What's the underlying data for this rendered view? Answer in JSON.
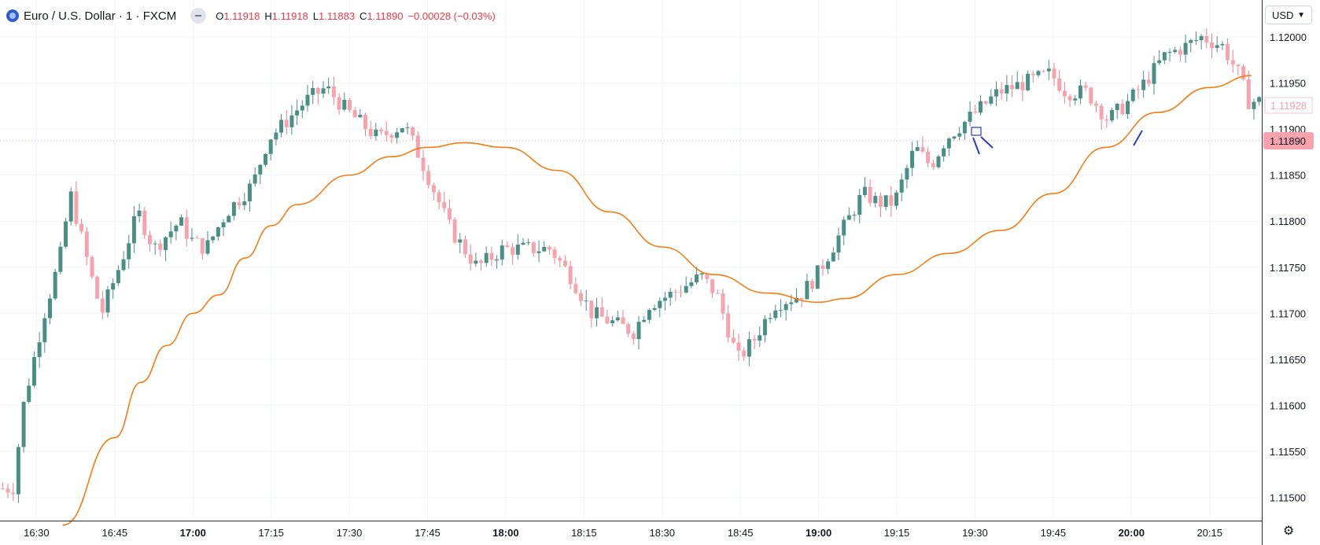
{
  "header": {
    "symbol": "Euro / U.S. Dollar · 1 · FXCM",
    "open_label": "O",
    "open": "1.11918",
    "high_label": "H",
    "high": "1.11918",
    "low_label": "L",
    "low": "1.11883",
    "close_label": "C",
    "close": "1.11890",
    "change": "−0.00028 (−0.03%)"
  },
  "currency": {
    "label": "USD"
  },
  "icons": {
    "symbol": "fxcm-logo-icon",
    "status": "collapse-icon",
    "settings": "gear-icon",
    "currency": "chevron-down-icon"
  },
  "colors": {
    "up": "#26a69a",
    "up_fill": "#4a8f86",
    "down": "#f7a3ad",
    "ma": "#f57c12",
    "last_price_badge": "#f7a3ad",
    "drawing": "#2a3bc4"
  },
  "chart_data": {
    "type": "candlestick",
    "title": "",
    "x_ticks": [
      "16:30",
      "16:45",
      "17:00",
      "17:15",
      "17:30",
      "17:45",
      "18:00",
      "18:15",
      "18:30",
      "18:45",
      "19:00",
      "19:15",
      "19:30",
      "19:45",
      "20:00",
      "20:15"
    ],
    "x_ticks_bold": [
      "17:00",
      "18:00",
      "19:00",
      "20:00"
    ],
    "y_ticks": [
      "1.11500",
      "1.11550",
      "1.11600",
      "1.11650",
      "1.11700",
      "1.11750",
      "1.11800",
      "1.11850",
      "1.11900",
      "1.11950",
      "1.12000"
    ],
    "ylim": [
      1.11475,
      1.1204
    ],
    "last_price": "1.11890",
    "marked_price": "1.11928",
    "grid": true,
    "series": [
      {
        "name": "",
        "type": "moving_average",
        "points": [
          [
            "16:35",
            1.1147
          ],
          [
            "16:45",
            1.11565
          ],
          [
            "16:50",
            1.11625
          ],
          [
            "16:55",
            1.11665
          ],
          [
            "17:00",
            1.117
          ],
          [
            "17:05",
            1.1172
          ],
          [
            "17:10",
            1.1176
          ],
          [
            "17:15",
            1.11795
          ],
          [
            "17:20",
            1.11818
          ],
          [
            "17:30",
            1.1185
          ],
          [
            "17:38",
            1.1187
          ],
          [
            "17:45",
            1.1188
          ],
          [
            "17:52",
            1.11885
          ],
          [
            "18:00",
            1.1188
          ],
          [
            "18:10",
            1.11855
          ],
          [
            "18:20",
            1.1181
          ],
          [
            "18:30",
            1.11772
          ],
          [
            "18:40",
            1.11742
          ],
          [
            "18:50",
            1.11722
          ],
          [
            "19:00",
            1.11712
          ],
          [
            "19:05",
            1.11716
          ],
          [
            "19:15",
            1.11742
          ],
          [
            "19:25",
            1.11765
          ],
          [
            "19:35",
            1.1179
          ],
          [
            "19:45",
            1.1183
          ],
          [
            "19:55",
            1.1188
          ],
          [
            "20:05",
            1.11918
          ],
          [
            "20:15",
            1.11945
          ],
          [
            "20:23",
            1.11958
          ]
        ]
      },
      {
        "name": "",
        "type": "ohlc_keypoints",
        "points": [
          [
            "16:26",
            1.1151
          ],
          [
            "16:28",
            1.116
          ],
          [
            "16:32",
            1.117
          ],
          [
            "16:35",
            1.1176
          ],
          [
            "16:37",
            1.1183
          ],
          [
            "16:41",
            1.1174
          ],
          [
            "16:43",
            1.117
          ],
          [
            "16:47",
            1.1176
          ],
          [
            "16:50",
            1.1181
          ],
          [
            "16:53",
            1.1177
          ],
          [
            "16:58",
            1.118
          ],
          [
            "17:00",
            1.1178
          ],
          [
            "17:03",
            1.1177
          ],
          [
            "17:07",
            1.1181
          ],
          [
            "17:12",
            1.1184
          ],
          [
            "17:15",
            1.1189
          ],
          [
            "17:17",
            1.119
          ],
          [
            "17:22",
            1.1193
          ],
          [
            "17:26",
            1.11945
          ],
          [
            "17:30",
            1.1192
          ],
          [
            "17:36",
            1.1189
          ],
          [
            "17:41",
            1.11905
          ],
          [
            "17:44",
            1.1187
          ],
          [
            "17:47",
            1.1183
          ],
          [
            "17:50",
            1.1179
          ],
          [
            "17:55",
            1.1175
          ],
          [
            "18:00",
            1.1177
          ],
          [
            "18:04",
            1.1177
          ],
          [
            "18:09",
            1.1177
          ],
          [
            "18:13",
            1.1174
          ],
          [
            "18:17",
            1.117
          ],
          [
            "18:21",
            1.1169
          ],
          [
            "18:25",
            1.1168
          ],
          [
            "18:28",
            1.1171
          ],
          [
            "18:32",
            1.1172
          ],
          [
            "18:38",
            1.1174
          ],
          [
            "18:41",
            1.1172
          ],
          [
            "18:45",
            1.1165
          ],
          [
            "18:48",
            1.1167
          ],
          [
            "18:52",
            1.1171
          ],
          [
            "18:57",
            1.1172
          ],
          [
            "19:00",
            1.1174
          ],
          [
            "19:04",
            1.1178
          ],
          [
            "19:09",
            1.1183
          ],
          [
            "19:12",
            1.1182
          ],
          [
            "19:15",
            1.1182
          ],
          [
            "19:19",
            1.1188
          ],
          [
            "19:22",
            1.1186
          ],
          [
            "19:25",
            1.1189
          ],
          [
            "19:27",
            1.119
          ],
          [
            "19:31",
            1.1192
          ],
          [
            "19:35",
            1.1194
          ],
          [
            "19:40",
            1.1195
          ],
          [
            "19:45",
            1.1196
          ],
          [
            "19:48",
            1.1194
          ],
          [
            "19:52",
            1.1194
          ],
          [
            "19:56",
            1.1191
          ],
          [
            "20:00",
            1.1193
          ],
          [
            "20:03",
            1.1195
          ],
          [
            "20:07",
            1.1198
          ],
          [
            "20:11",
            1.1199
          ],
          [
            "20:14",
            1.12
          ],
          [
            "20:18",
            1.1199
          ],
          [
            "20:21",
            1.1196
          ],
          [
            "20:23",
            1.1193
          ]
        ]
      }
    ]
  }
}
